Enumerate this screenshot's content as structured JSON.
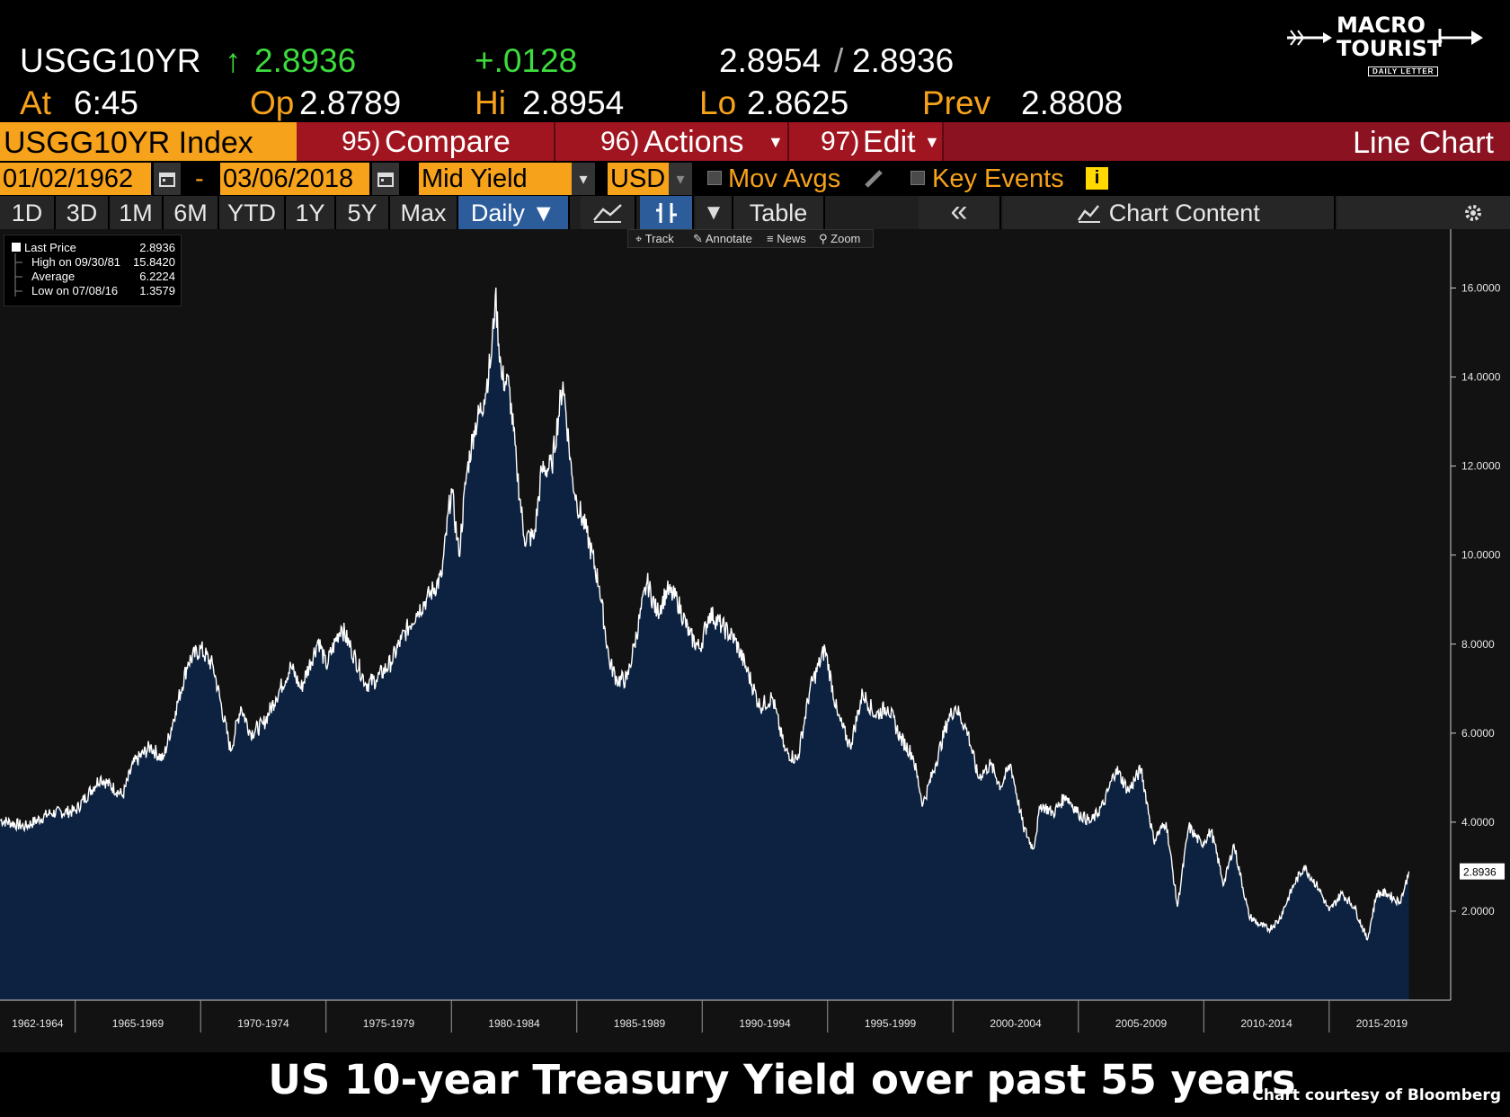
{
  "quote": {
    "ticker": "USGG10YR",
    "arrow": "↑",
    "last": "2.8936",
    "change": "+.0128",
    "bid": "2.8954",
    "separator": "/",
    "ask": "2.8936",
    "at_label": "At",
    "time": "6:45",
    "open_label": "Op",
    "open": "2.8789",
    "high_label": "Hi",
    "high": "2.8954",
    "low_label": "Lo",
    "low": "2.8625",
    "prev_label": "Prev",
    "prev": "2.8808"
  },
  "logo": {
    "line1": "MACRO",
    "line2": "TOURIST",
    "sub": "DAILY LETTER"
  },
  "commands": {
    "security": "USGG10YR Index",
    "compare_num": "95)",
    "compare": "Compare",
    "actions_num": "96)",
    "actions": "Actions",
    "edit_num": "97)",
    "edit": "Edit",
    "chart_kind": "Line Chart"
  },
  "dates": {
    "start": "01/02/1962",
    "dash": "-",
    "end": "03/06/2018",
    "field": "Mid Yield",
    "currency": "USD",
    "mov_avgs": "Mov Avgs",
    "key_events": "Key Events",
    "info": "i"
  },
  "periods": {
    "tabs": [
      "1D",
      "3D",
      "1M",
      "6M",
      "YTD",
      "1Y",
      "5Y",
      "Max"
    ],
    "frequency": "Daily ▼",
    "table": "Table",
    "collapse": "«",
    "chart_content": "Chart Content"
  },
  "mini_toolbar": {
    "track": "Track",
    "annotate": "Annotate",
    "news": "News",
    "zoom": "Zoom"
  },
  "legend": {
    "last_price_label": "Last Price",
    "last_price": "2.8936",
    "high_label": "High on 09/30/81",
    "high": "15.8420",
    "average_label": "Average",
    "average": "6.2224",
    "low_label": "Low on 07/08/16",
    "low": "1.3579"
  },
  "chart_data": {
    "type": "area",
    "series": [
      {
        "name": "USGG10YR Index",
        "x": [
          1962.0,
          1963.0,
          1964.0,
          1965.0,
          1966.0,
          1966.9,
          1967.3,
          1968.0,
          1968.5,
          1969.0,
          1969.5,
          1970.0,
          1970.5,
          1971.2,
          1971.6,
          1972.0,
          1972.5,
          1973.0,
          1973.6,
          1974.0,
          1974.7,
          1975.0,
          1975.6,
          1976.0,
          1976.6,
          1977.0,
          1977.6,
          1978.0,
          1978.6,
          1979.0,
          1979.6,
          1980.0,
          1980.3,
          1980.6,
          1980.9,
          1981.3,
          1981.6,
          1981.75,
          1982.0,
          1982.3,
          1982.6,
          1982.9,
          1983.3,
          1983.6,
          1984.0,
          1984.45,
          1984.8,
          1985.0,
          1985.4,
          1985.9,
          1986.3,
          1986.6,
          1987.0,
          1987.3,
          1987.8,
          1988.2,
          1988.6,
          1989.0,
          1989.5,
          1989.9,
          1990.3,
          1990.8,
          1991.3,
          1991.8,
          1992.3,
          1992.8,
          1993.3,
          1993.8,
          1994.3,
          1994.9,
          1995.4,
          1995.9,
          1996.4,
          1996.9,
          1997.4,
          1997.9,
          1998.4,
          1998.8,
          1999.3,
          1999.8,
          2000.1,
          2000.6,
          2001.0,
          2001.5,
          2001.9,
          2002.3,
          2002.8,
          2003.2,
          2003.5,
          2004.0,
          2004.5,
          2005.0,
          2005.5,
          2006.0,
          2006.5,
          2007.0,
          2007.5,
          2008.0,
          2008.5,
          2008.95,
          2009.4,
          2009.9,
          2010.3,
          2010.8,
          2011.2,
          2011.8,
          2012.2,
          2012.6,
          2013.0,
          2013.6,
          2014.0,
          2014.6,
          2015.0,
          2015.5,
          2016.0,
          2016.52,
          2016.9,
          2017.3,
          2017.8,
          2018.0,
          2018.18
        ],
        "values": [
          4.05,
          3.9,
          4.2,
          4.25,
          5.0,
          4.6,
          5.3,
          5.7,
          5.4,
          6.5,
          7.6,
          7.9,
          7.5,
          5.6,
          6.6,
          6.0,
          6.2,
          6.8,
          7.5,
          7.0,
          8.1,
          7.5,
          8.4,
          7.9,
          7.1,
          7.2,
          7.6,
          8.1,
          8.7,
          9.0,
          9.5,
          11.5,
          10.0,
          11.8,
          12.8,
          13.5,
          14.5,
          15.84,
          14.0,
          13.8,
          12.0,
          10.4,
          10.4,
          11.9,
          12.0,
          13.9,
          11.8,
          11.2,
          10.5,
          9.3,
          7.6,
          7.2,
          7.2,
          8.0,
          9.4,
          8.7,
          9.2,
          9.0,
          8.2,
          7.9,
          8.7,
          8.4,
          8.1,
          7.4,
          6.6,
          6.8,
          5.6,
          5.4,
          7.0,
          7.9,
          6.4,
          5.7,
          6.9,
          6.4,
          6.6,
          5.9,
          5.5,
          4.4,
          5.3,
          6.3,
          6.6,
          6.0,
          5.0,
          5.3,
          4.8,
          5.3,
          3.9,
          3.4,
          4.4,
          4.2,
          4.6,
          4.2,
          4.0,
          4.4,
          5.2,
          4.7,
          5.2,
          3.6,
          4.0,
          2.1,
          3.9,
          3.5,
          3.8,
          2.6,
          3.5,
          1.9,
          1.7,
          1.6,
          1.8,
          2.6,
          3.0,
          2.5,
          2.0,
          2.4,
          2.1,
          1.3579,
          2.4,
          2.4,
          2.2,
          2.5,
          2.8936
        ]
      }
    ],
    "x_tick_labels": [
      "1962-1964",
      "1965-1969",
      "1970-1974",
      "1975-1979",
      "1980-1984",
      "1985-1989",
      "1990-1994",
      "1995-1999",
      "2000-2004",
      "2005-2009",
      "2010-2014",
      "2015-2019"
    ],
    "x_tick_positions": [
      1962,
      1965,
      1970,
      1975,
      1980,
      1985,
      1990,
      1995,
      2000,
      2005,
      2010,
      2015
    ],
    "x_range": [
      1962,
      2019.2
    ],
    "y_ticks": [
      2,
      4,
      6,
      8,
      10,
      12,
      14,
      16
    ],
    "y_tick_labels": [
      "2.0000",
      "4.0000",
      "6.0000",
      "8.0000",
      "10.0000",
      "12.0000",
      "14.0000",
      "16.0000"
    ],
    "ylim": [
      0,
      17
    ],
    "last_value_label": "2.8936",
    "grid": false,
    "line_color": "#ffffff",
    "fill_color": "#0c2240",
    "title": "US 10-year Treasury Yield over past 55 years",
    "credit": "Chart courtesy of Bloomberg"
  }
}
